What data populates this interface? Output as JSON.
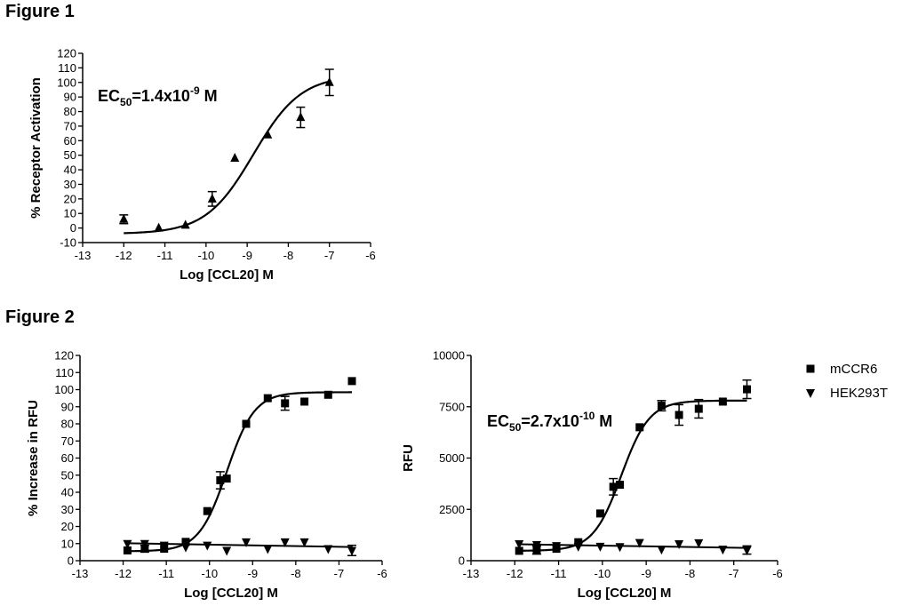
{
  "figure1": {
    "title": "Figure 1"
  },
  "figure2": {
    "title": "Figure 2"
  },
  "chart_data": [
    {
      "id": "fig1",
      "type": "scatter",
      "xlabel": "Log [CCL20] M",
      "ylabel": "% Receptor Activation",
      "xlim": [
        -13,
        -6
      ],
      "ylim": [
        -10,
        120
      ],
      "xticks": [
        -13,
        -12,
        -11,
        -10,
        -9,
        -8,
        -7,
        -6
      ],
      "yticks": [
        -10,
        0,
        10,
        20,
        30,
        40,
        50,
        60,
        70,
        80,
        90,
        100,
        110,
        120
      ],
      "annotation": {
        "prefix": "EC",
        "sub": "50",
        "mid": "=1.4x10",
        "sup": "-9",
        "suffix": " M"
      },
      "series": [
        {
          "marker": "triangle-up",
          "x": [
            -12,
            -11.15,
            -10.5,
            -9.85,
            -9.3,
            -8.5,
            -7.7,
            -7
          ],
          "y": [
            6,
            0,
            2,
            20,
            48,
            64,
            76,
            100
          ],
          "err": [
            3,
            0,
            0,
            5,
            0,
            0,
            7,
            9
          ],
          "fit": {
            "top": 105,
            "bottom": -4,
            "logec50": -8.85,
            "hill": 0.75
          }
        }
      ]
    },
    {
      "id": "fig2a",
      "type": "scatter",
      "xlabel": "Log [CCL20] M",
      "ylabel": "% Increase in RFU",
      "xlim": [
        -13,
        -6
      ],
      "ylim": [
        0,
        120
      ],
      "xticks": [
        -13,
        -12,
        -11,
        -10,
        -9,
        -8,
        -7,
        -6
      ],
      "yticks": [
        0,
        10,
        20,
        30,
        40,
        50,
        60,
        70,
        80,
        90,
        100,
        110,
        120
      ],
      "series": [
        {
          "marker": "square",
          "x": [
            -11.9,
            -11.5,
            -11.05,
            -10.55,
            -10.05,
            -9.75,
            -9.6,
            -9.15,
            -8.65,
            -8.25,
            -7.8,
            -7.25,
            -6.7
          ],
          "y": [
            6,
            7,
            7,
            11,
            29,
            47,
            48,
            80,
            95,
            92,
            93,
            97,
            105
          ],
          "err": [
            0,
            2,
            0,
            0,
            0,
            5,
            0,
            0,
            0,
            4,
            0,
            0,
            0
          ],
          "fit": {
            "top": 98.5,
            "bottom": 5.5,
            "logec50": -9.6,
            "hill": 1.35
          }
        },
        {
          "marker": "triangle-down",
          "x": [
            -11.9,
            -11.5,
            -11.05,
            -10.55,
            -10.05,
            -9.6,
            -9.15,
            -8.65,
            -8.25,
            -7.8,
            -7.25,
            -6.7
          ],
          "y": [
            10,
            10,
            9,
            8,
            9,
            6,
            11,
            7,
            11,
            11,
            7,
            6
          ],
          "err": [
            0,
            0,
            0,
            0,
            0,
            0,
            0,
            0,
            0,
            0,
            0,
            3
          ],
          "line": {
            "y0": 10.2,
            "y1": 8.0
          }
        }
      ]
    },
    {
      "id": "fig2b",
      "type": "scatter",
      "xlabel": "Log [CCL20] M",
      "ylabel": "RFU",
      "xlim": [
        -13,
        -6
      ],
      "ylim": [
        0,
        10000
      ],
      "xticks": [
        -13,
        -12,
        -11,
        -10,
        -9,
        -8,
        -7,
        -6
      ],
      "yticks": [
        0,
        2500,
        5000,
        7500,
        10000
      ],
      "annotation": {
        "prefix": "EC",
        "sub": "50",
        "mid": "=2.7x10",
        "sup": "-10",
        "suffix": " M"
      },
      "legend": [
        "mCCR6",
        "HEK293T"
      ],
      "legend_position": "right",
      "series": [
        {
          "name": "mCCR6",
          "marker": "square",
          "x": [
            -11.9,
            -11.5,
            -11.05,
            -10.55,
            -10.05,
            -9.75,
            -9.6,
            -9.15,
            -8.65,
            -8.25,
            -7.8,
            -7.25,
            -6.7
          ],
          "y": [
            480,
            520,
            580,
            900,
            2300,
            3600,
            3700,
            6500,
            7550,
            7100,
            7400,
            7750,
            8350
          ],
          "err": [
            0,
            200,
            0,
            0,
            0,
            400,
            0,
            0,
            250,
            500,
            450,
            0,
            450
          ],
          "fit": {
            "top": 7800,
            "bottom": 480,
            "logec50": -9.57,
            "hill": 1.35
          }
        },
        {
          "name": "HEK293T",
          "marker": "triangle-down",
          "x": [
            -11.9,
            -11.5,
            -11.05,
            -10.55,
            -10.05,
            -9.6,
            -9.15,
            -8.65,
            -8.25,
            -7.8,
            -7.25,
            -6.7
          ],
          "y": [
            820,
            780,
            730,
            700,
            700,
            680,
            880,
            560,
            820,
            870,
            560,
            520
          ],
          "err": [
            0,
            0,
            0,
            0,
            0,
            0,
            0,
            0,
            0,
            0,
            0,
            200
          ],
          "line": {
            "y0": 800,
            "y1": 620
          }
        }
      ]
    }
  ]
}
